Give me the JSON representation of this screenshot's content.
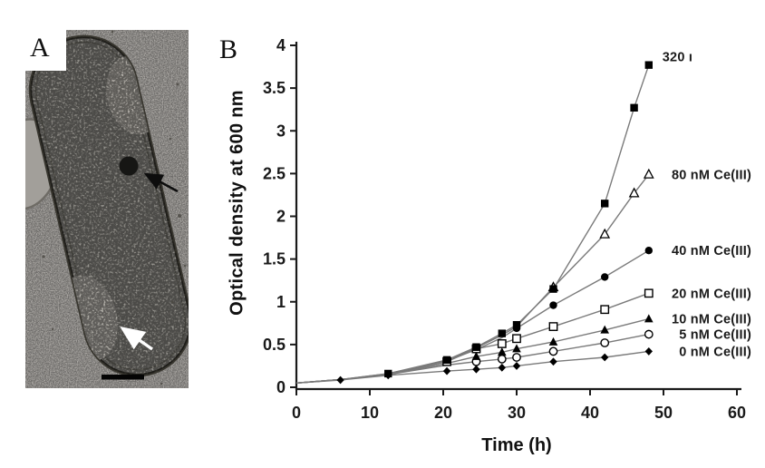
{
  "figure": {
    "panel_a": {
      "letter": "A",
      "type": "electron-micrograph"
    },
    "panel_b": {
      "letter": "B"
    }
  },
  "colors": {
    "axis": "#1a1a1a",
    "line": "#7a7a7a",
    "marker": "#000000",
    "micrograph_background": "#aba8a4",
    "cell_body": "#989690",
    "granule": "#161614"
  },
  "chart_data": {
    "type": "line",
    "title": "",
    "xlabel": "Time (h)",
    "ylabel": "Optical density at 600 nm",
    "xlim": [
      0,
      60
    ],
    "ylim": [
      0,
      4
    ],
    "x_ticks": [
      0,
      10,
      20,
      30,
      40,
      50,
      60
    ],
    "y_ticks": [
      0,
      0.5,
      1,
      1.5,
      2,
      2.5,
      3,
      3.5,
      4
    ],
    "grid": false,
    "legend_position": "labels-right-of-last-point",
    "series": [
      {
        "label": "0 nM Ce(III)",
        "marker": "filled-diamond",
        "label_align": "end",
        "label_dy": 0,
        "marker_start": 1,
        "x": [
          0,
          6,
          12.5,
          20.5,
          24.5,
          28,
          30,
          35,
          42,
          48
        ],
        "y": [
          0.05,
          0.085,
          0.14,
          0.19,
          0.21,
          0.23,
          0.25,
          0.3,
          0.35,
          0.42
        ]
      },
      {
        "label": "5 nM Ce(III)",
        "marker": "open-circle",
        "label_align": "end",
        "label_dy": 0,
        "marker_start": 4,
        "x": [
          0,
          6,
          12.5,
          20.5,
          24.5,
          28,
          30,
          35,
          42,
          48
        ],
        "y": [
          0.05,
          0.09,
          0.15,
          0.26,
          0.3,
          0.33,
          0.35,
          0.42,
          0.52,
          0.62
        ]
      },
      {
        "label": "10 nM Ce(III)",
        "marker": "filled-triangle",
        "label_align": "end",
        "label_dy": 0,
        "marker_start": 4,
        "x": [
          0,
          6,
          12.5,
          20.5,
          24.5,
          28,
          30,
          35,
          42,
          48
        ],
        "y": [
          0.05,
          0.09,
          0.15,
          0.28,
          0.36,
          0.41,
          0.45,
          0.53,
          0.67,
          0.8
        ]
      },
      {
        "label": "20 nM Ce(III)",
        "marker": "open-square",
        "label_align": "end",
        "label_dy": 0,
        "marker_start": 3,
        "x": [
          0,
          6,
          12.5,
          20.5,
          24.5,
          28,
          30,
          35,
          42,
          48
        ],
        "y": [
          0.05,
          0.09,
          0.15,
          0.3,
          0.45,
          0.51,
          0.57,
          0.71,
          0.91,
          1.1
        ]
      },
      {
        "label": "40 nM Ce(III)",
        "marker": "filled-circle",
        "label_align": "end",
        "label_dy": 0,
        "marker_start": 6,
        "x": [
          0,
          6,
          12.5,
          20.5,
          24.5,
          28,
          30,
          35,
          42,
          48
        ],
        "y": [
          0.05,
          0.09,
          0.15,
          0.31,
          0.44,
          0.58,
          0.69,
          0.96,
          1.29,
          1.6
        ]
      },
      {
        "label": "80 nM Ce(III)",
        "marker": "open-triangle",
        "label_align": "end",
        "label_dy": 0,
        "marker_start": 7,
        "x": [
          0,
          6,
          12.5,
          20.5,
          24.5,
          28,
          30,
          35,
          42,
          46,
          48
        ],
        "y": [
          0.05,
          0.09,
          0.16,
          0.31,
          0.46,
          0.61,
          0.71,
          1.17,
          1.79,
          2.27,
          2.49
        ]
      },
      {
        "label": "320 ı",
        "marker": "filled-square",
        "label_align": "start",
        "label_dy": -9,
        "marker_start": 2,
        "x": [
          0,
          6,
          12.5,
          20.5,
          24.5,
          28,
          30,
          35,
          42,
          46,
          48
        ],
        "y": [
          0.05,
          0.09,
          0.16,
          0.32,
          0.47,
          0.63,
          0.73,
          1.15,
          2.15,
          3.27,
          3.77
        ]
      }
    ]
  }
}
